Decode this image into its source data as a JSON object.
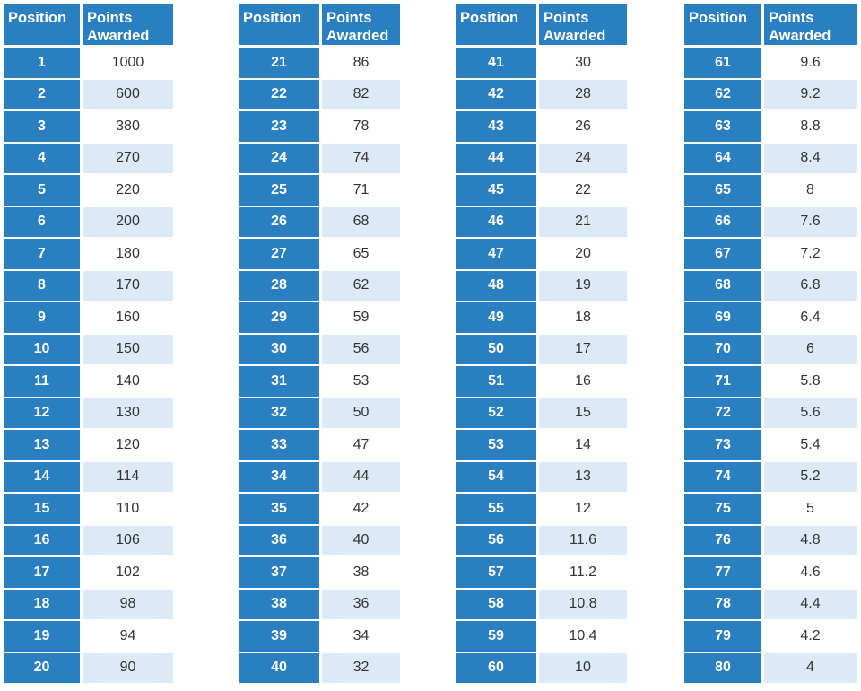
{
  "header": {
    "position_label": "Position",
    "points_label_line1": "Points",
    "points_label_line2": "Awarded"
  },
  "tables": [
    {
      "rows": [
        {
          "position": "1",
          "points": "1000"
        },
        {
          "position": "2",
          "points": "600"
        },
        {
          "position": "3",
          "points": "380"
        },
        {
          "position": "4",
          "points": "270"
        },
        {
          "position": "5",
          "points": "220"
        },
        {
          "position": "6",
          "points": "200"
        },
        {
          "position": "7",
          "points": "180"
        },
        {
          "position": "8",
          "points": "170"
        },
        {
          "position": "9",
          "points": "160"
        },
        {
          "position": "10",
          "points": "150"
        },
        {
          "position": "11",
          "points": "140"
        },
        {
          "position": "12",
          "points": "130"
        },
        {
          "position": "13",
          "points": "120"
        },
        {
          "position": "14",
          "points": "114"
        },
        {
          "position": "15",
          "points": "110"
        },
        {
          "position": "16",
          "points": "106"
        },
        {
          "position": "17",
          "points": "102"
        },
        {
          "position": "18",
          "points": "98"
        },
        {
          "position": "19",
          "points": "94"
        },
        {
          "position": "20",
          "points": "90"
        }
      ]
    },
    {
      "rows": [
        {
          "position": "21",
          "points": "86"
        },
        {
          "position": "22",
          "points": "82"
        },
        {
          "position": "23",
          "points": "78"
        },
        {
          "position": "24",
          "points": "74"
        },
        {
          "position": "25",
          "points": "71"
        },
        {
          "position": "26",
          "points": "68"
        },
        {
          "position": "27",
          "points": "65"
        },
        {
          "position": "28",
          "points": "62"
        },
        {
          "position": "29",
          "points": "59"
        },
        {
          "position": "30",
          "points": "56"
        },
        {
          "position": "31",
          "points": "53"
        },
        {
          "position": "32",
          "points": "50"
        },
        {
          "position": "33",
          "points": "47"
        },
        {
          "position": "34",
          "points": "44"
        },
        {
          "position": "35",
          "points": "42"
        },
        {
          "position": "36",
          "points": "40"
        },
        {
          "position": "37",
          "points": "38"
        },
        {
          "position": "38",
          "points": "36"
        },
        {
          "position": "39",
          "points": "34"
        },
        {
          "position": "40",
          "points": "32"
        }
      ]
    },
    {
      "rows": [
        {
          "position": "41",
          "points": "30"
        },
        {
          "position": "42",
          "points": "28"
        },
        {
          "position": "43",
          "points": "26"
        },
        {
          "position": "44",
          "points": "24"
        },
        {
          "position": "45",
          "points": "22"
        },
        {
          "position": "46",
          "points": "21"
        },
        {
          "position": "47",
          "points": "20"
        },
        {
          "position": "48",
          "points": "19"
        },
        {
          "position": "49",
          "points": "18"
        },
        {
          "position": "50",
          "points": "17"
        },
        {
          "position": "51",
          "points": "16"
        },
        {
          "position": "52",
          "points": "15"
        },
        {
          "position": "53",
          "points": "14"
        },
        {
          "position": "54",
          "points": "13"
        },
        {
          "position": "55",
          "points": "12"
        },
        {
          "position": "56",
          "points": "11.6"
        },
        {
          "position": "57",
          "points": "11.2"
        },
        {
          "position": "58",
          "points": "10.8"
        },
        {
          "position": "59",
          "points": "10.4"
        },
        {
          "position": "60",
          "points": "10"
        }
      ]
    },
    {
      "rows": [
        {
          "position": "61",
          "points": "9.6"
        },
        {
          "position": "62",
          "points": "9.2"
        },
        {
          "position": "63",
          "points": "8.8"
        },
        {
          "position": "64",
          "points": "8.4"
        },
        {
          "position": "65",
          "points": "8"
        },
        {
          "position": "66",
          "points": "7.6"
        },
        {
          "position": "67",
          "points": "7.2"
        },
        {
          "position": "68",
          "points": "6.8"
        },
        {
          "position": "69",
          "points": "6.4"
        },
        {
          "position": "70",
          "points": "6"
        },
        {
          "position": "71",
          "points": "5.8"
        },
        {
          "position": "72",
          "points": "5.6"
        },
        {
          "position": "73",
          "points": "5.4"
        },
        {
          "position": "74",
          "points": "5.2"
        },
        {
          "position": "75",
          "points": "5"
        },
        {
          "position": "76",
          "points": "4.8"
        },
        {
          "position": "77",
          "points": "4.6"
        },
        {
          "position": "78",
          "points": "4.4"
        },
        {
          "position": "79",
          "points": "4.2"
        },
        {
          "position": "80",
          "points": "4"
        }
      ]
    }
  ]
}
